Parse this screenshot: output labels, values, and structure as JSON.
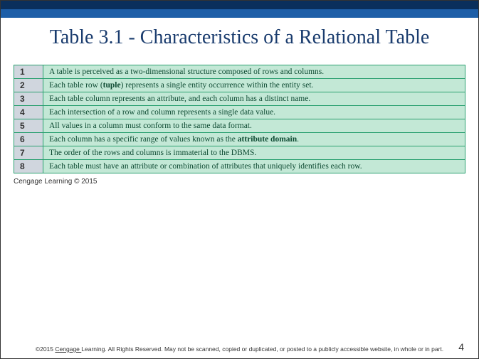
{
  "stripes": {
    "color1": "#0a2f5c",
    "color2": "#1e5fa8"
  },
  "title": "Table 3.1 - Characteristics of a Relational Table",
  "table": {
    "border_color": "#2aa070",
    "num_bg": "#d0d6de",
    "desc_bg": "#c3e8d6",
    "text_color": "#0d4a32",
    "rows": [
      {
        "n": "1",
        "text": "A table is perceived as a two-dimensional structure composed of rows and columns."
      },
      {
        "n": "2",
        "text_pre": "Each table row (",
        "bold": "tuple",
        "text_post": ") represents a single entity occurrence within the entity set."
      },
      {
        "n": "3",
        "text": "Each table column represents an attribute, and each column has a distinct name."
      },
      {
        "n": "4",
        "text": "Each intersection of a row and column represents a single data value."
      },
      {
        "n": "5",
        "text": "All values in a column must conform to the same data format."
      },
      {
        "n": "6",
        "text_pre": "Each column has a specific range of values known as the ",
        "bold": "attribute domain",
        "text_post": "."
      },
      {
        "n": "7",
        "text": "The order of the rows and columns is immaterial to the DBMS."
      },
      {
        "n": "8",
        "text": "Each table must have an attribute or combination of attributes that uniquely identifies each row."
      }
    ]
  },
  "copyright_small": "Cengage Learning © 2015",
  "footer": {
    "pre": "©2015 ",
    "underlined": "Cengage ",
    "post": "Learning. All Rights Reserved. May not be scanned, copied or duplicated, or posted to a publicly accessible website, in whole or in part."
  },
  "page_number": "4"
}
